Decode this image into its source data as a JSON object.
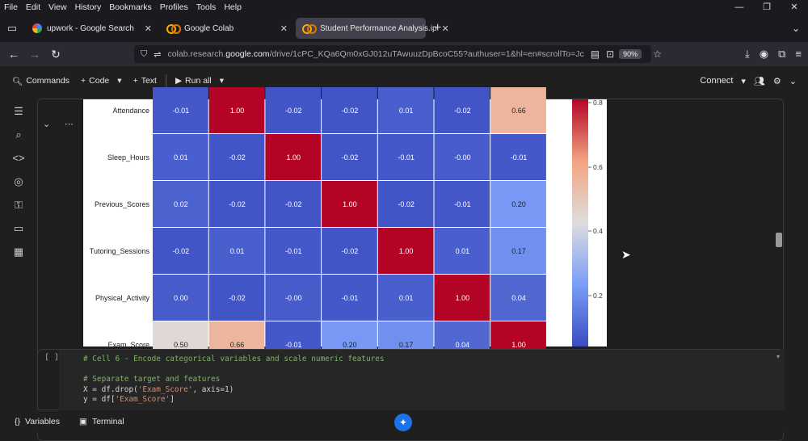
{
  "menubar": {
    "items": [
      "File",
      "Edit",
      "View",
      "History",
      "Bookmarks",
      "Profiles",
      "Tools",
      "Help"
    ],
    "window_controls": [
      "—",
      "❐",
      "✕"
    ]
  },
  "tabs": [
    {
      "title": "upwork - Google Search",
      "icon": "google-icon",
      "active": false
    },
    {
      "title": "Google Colab",
      "icon": "colab-icon",
      "active": false
    },
    {
      "title": "Student Performance Analysis.ip",
      "icon": "colab-icon",
      "active": true
    }
  ],
  "navbar": {
    "url_prefix": "colab.research.",
    "url_domain": "google.com",
    "url_path": "/drive/1cPC_KQa6Qm0xGJ012uTAwuuzDpBcoC55?authuser=1&hl=en#scrollTo=Jc",
    "zoom": "90%"
  },
  "colab_toolbar": {
    "commands": "Commands",
    "code": "Code",
    "text": "Text",
    "run_all": "Run all",
    "connect": "Connect"
  },
  "heatmap": {
    "rows": [
      "Attendance",
      "Sleep_Hours",
      "Previous_Scores",
      "Tutoring_Sessions",
      "Physical_Activity",
      "Exam_Score"
    ],
    "values": [
      [
        "-0.01",
        "1.00",
        "-0.02",
        "-0.02",
        "0.01",
        "-0.02",
        "0.66"
      ],
      [
        "0.01",
        "-0.02",
        "1.00",
        "-0.02",
        "-0.01",
        "-0.00",
        "-0.01"
      ],
      [
        "0.02",
        "-0.02",
        "-0.02",
        "1.00",
        "-0.02",
        "-0.01",
        "0.20"
      ],
      [
        "-0.02",
        "0.01",
        "-0.01",
        "-0.02",
        "1.00",
        "0.01",
        "0.17"
      ],
      [
        "0.00",
        "-0.02",
        "-0.00",
        "-0.01",
        "0.01",
        "1.00",
        "0.04"
      ],
      [
        "0.50",
        "0.66",
        "-0.01",
        "0.20",
        "0.17",
        "0.04",
        "1.00"
      ]
    ],
    "colorbar_ticks": [
      "0.8",
      "0.6",
      "0.4",
      "0.2"
    ],
    "colors": {
      "low": "#3b4cc0",
      "mid": "#dddddd",
      "high": "#b40426"
    }
  },
  "code_cell": {
    "run_label": "[ ]",
    "lines": [
      {
        "kind": "comment",
        "text": "# Cell 6 - Encode categorical variables and scale numeric features"
      },
      {
        "kind": "blank",
        "text": ""
      },
      {
        "kind": "comment",
        "text": "# Separate target and features"
      },
      {
        "kind": "code",
        "text": "X = df.drop('Exam_Score', axis=1)"
      },
      {
        "kind": "code",
        "text": "y = df['Exam_Score']"
      }
    ]
  },
  "statusbar": {
    "variables": "Variables",
    "terminal": "Terminal"
  }
}
